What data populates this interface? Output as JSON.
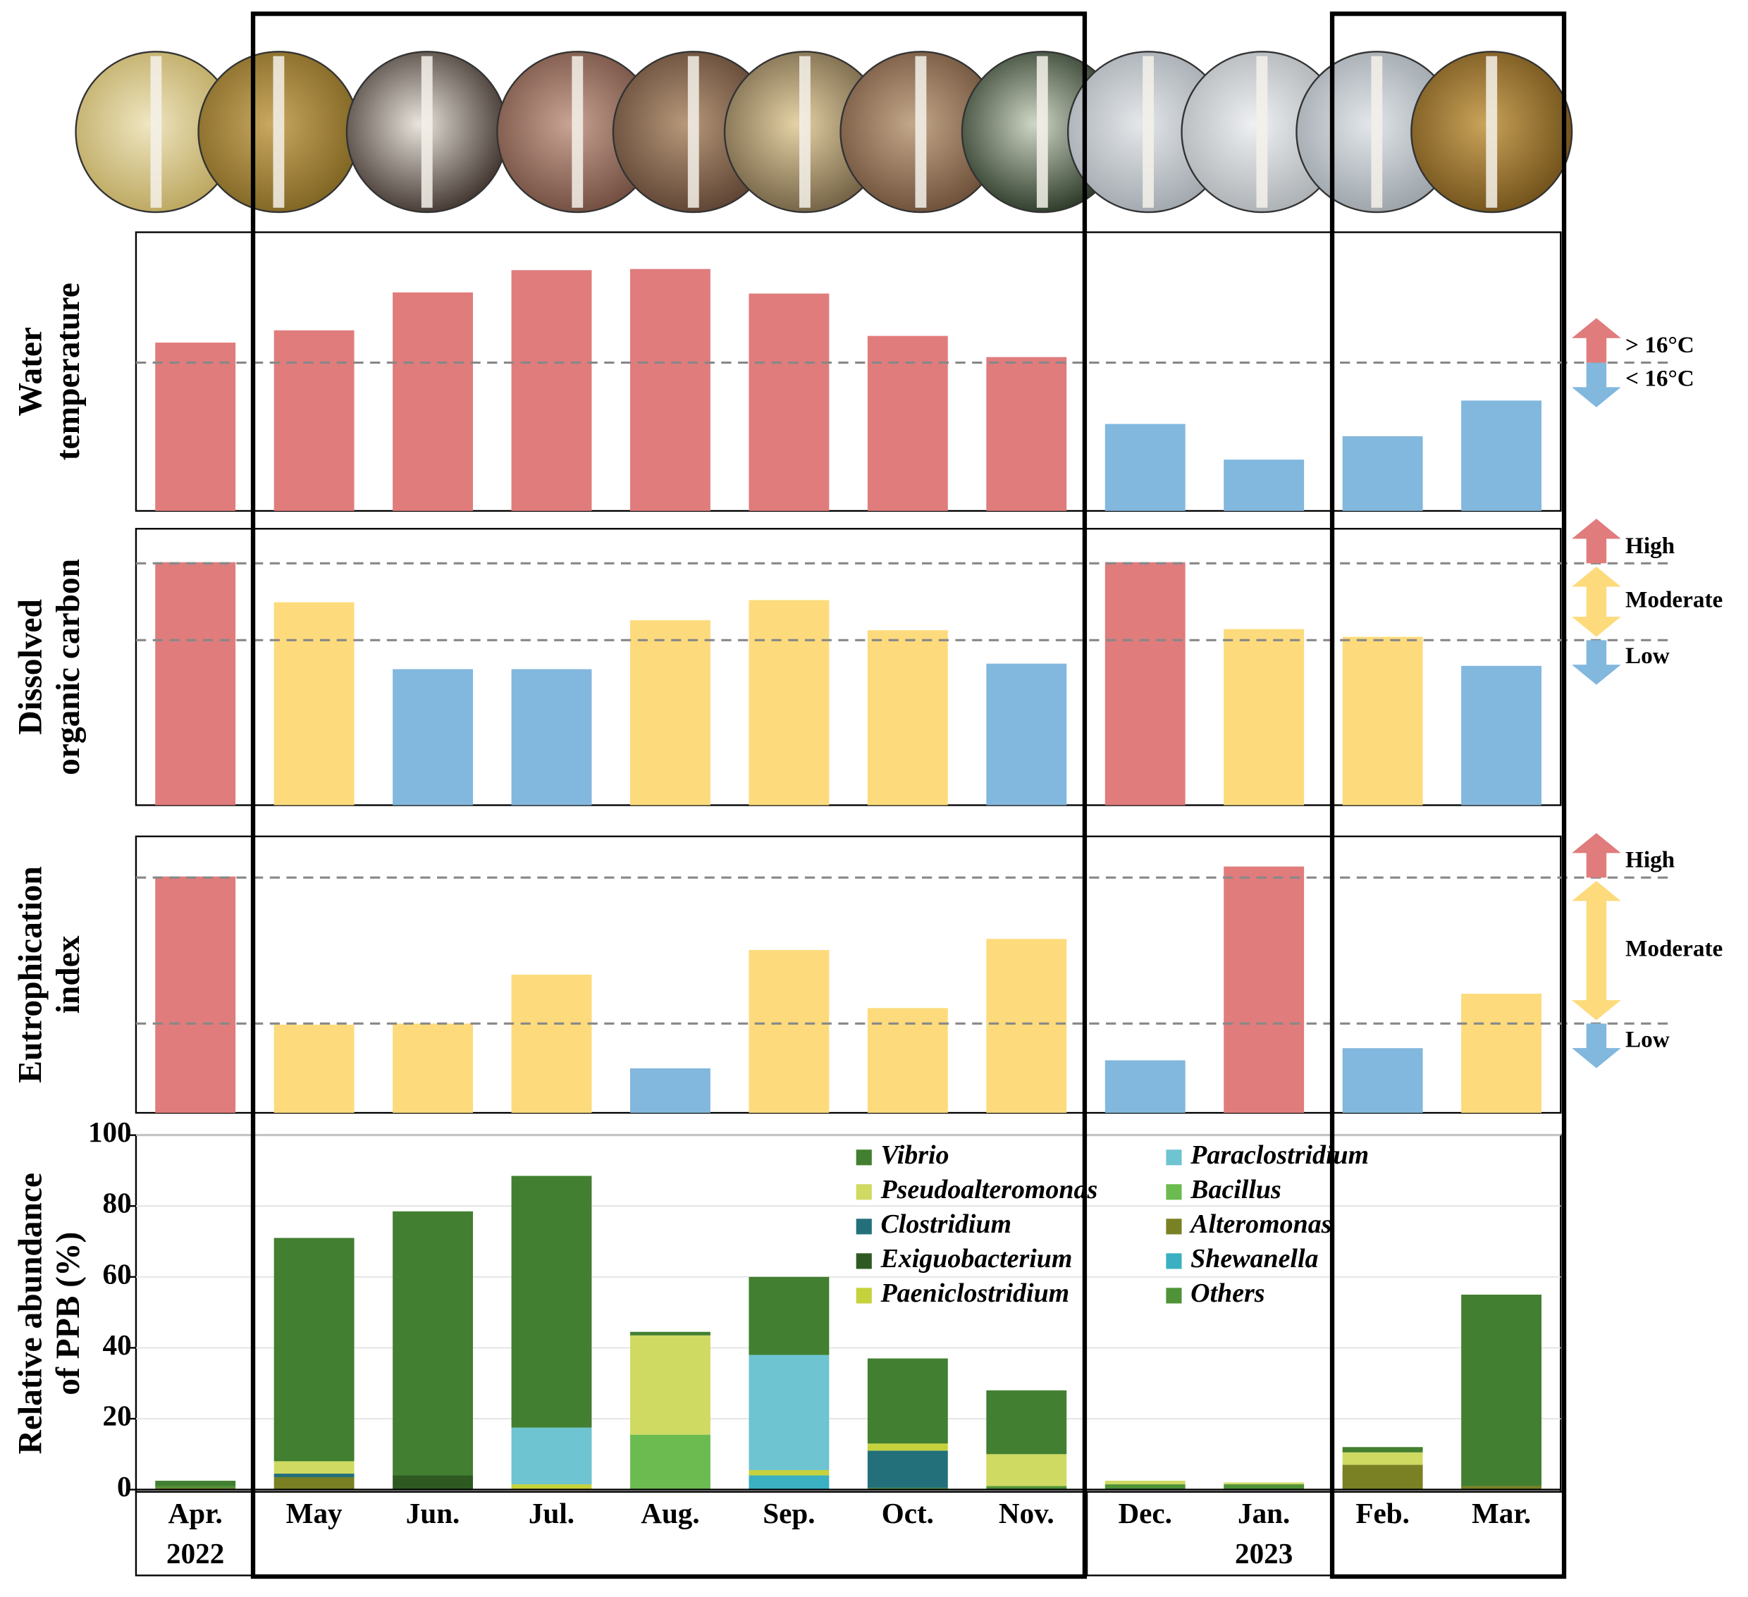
{
  "chart_data": [
    {
      "type": "bar",
      "y_label": [
        "Water",
        "temperature"
      ],
      "ylim": [
        0,
        100
      ],
      "values": [
        60.4,
        64.8,
        78.4,
        86.4,
        86.8,
        78,
        62.8,
        55.2,
        31.2,
        18.4,
        26.8,
        39.6
      ],
      "colors": [
        "#e07c7c",
        "#e07c7c",
        "#e07c7c",
        "#e07c7c",
        "#e07c7c",
        "#e07c7c",
        "#e07c7c",
        "#e07c7c",
        "#82b7de",
        "#82b7de",
        "#82b7de",
        "#82b7de"
      ],
      "reference_lines": [
        53.2
      ],
      "legend": [
        {
          "label": "> 16°C",
          "color": "#e07c7c"
        },
        {
          "label": "< 16°C",
          "color": "#82b7de"
        }
      ]
    },
    {
      "type": "bar",
      "y_label": [
        "Dissolved",
        "organic carbon"
      ],
      "ylim": [
        0,
        100
      ],
      "values": [
        87.9,
        73.4,
        49.2,
        49.2,
        66.9,
        74.2,
        63.3,
        51.2,
        87.9,
        63.7,
        60.9,
        50.4
      ],
      "colors": [
        "#e07c7c",
        "#fddb7c",
        "#82b7de",
        "#82b7de",
        "#fddb7c",
        "#fddb7c",
        "#fddb7c",
        "#82b7de",
        "#e07c7c",
        "#fddb7c",
        "#fddb7c",
        "#82b7de"
      ],
      "reference_lines": [
        87.5,
        59.7
      ],
      "legend": [
        {
          "label": "High",
          "color": "#e07c7c"
        },
        {
          "label": "Moderate",
          "color": "#fddb7c"
        },
        {
          "label": "Low",
          "color": "#82b7de"
        }
      ]
    },
    {
      "type": "bar",
      "y_label": [
        "Eutrophication",
        "index"
      ],
      "ylim": [
        0,
        100
      ],
      "values": [
        85.5,
        31.9,
        32.3,
        50,
        16.1,
        58.9,
        37.9,
        62.9,
        19,
        89.1,
        23.4,
        43.1
      ],
      "colors": [
        "#e07c7c",
        "#fddb7c",
        "#fddb7c",
        "#fddb7c",
        "#82b7de",
        "#fddb7c",
        "#fddb7c",
        "#fddb7c",
        "#82b7de",
        "#e07c7c",
        "#82b7de",
        "#fddb7c"
      ],
      "reference_lines": [
        85.1,
        32.3
      ],
      "legend": [
        {
          "label": "High",
          "color": "#e07c7c"
        },
        {
          "label": "Moderate",
          "color": "#fddb7c"
        },
        {
          "label": "Low",
          "color": "#82b7de"
        }
      ]
    },
    {
      "type": "stacked_bar",
      "y_label": [
        "Relative abundance",
        "of PPB (%)"
      ],
      "categories": [
        "Apr.",
        "May",
        "Jun.",
        "Jul.",
        "Aug.",
        "Sep.",
        "Oct.",
        "Nov.",
        "Dec.",
        "Jan.",
        "Feb.",
        "Mar."
      ],
      "category_sublabels": [
        "2022",
        null,
        null,
        null,
        null,
        null,
        null,
        null,
        null,
        "2023",
        null,
        null
      ],
      "ylim": [
        0,
        100
      ],
      "yticks": [
        0,
        20,
        40,
        60,
        80,
        100
      ],
      "grid": true,
      "series": [
        {
          "name": "Vibrio",
          "color": "#427f30",
          "values": [
            1.5,
            63,
            74.5,
            71,
            1,
            22,
            24,
            18,
            0,
            0,
            1.5,
            54
          ]
        },
        {
          "name": "Pseudoalteromonas",
          "color": "#cfda62",
          "values": [
            0,
            3.5,
            0,
            0,
            28,
            0,
            0,
            9,
            1,
            0.5,
            3.5,
            0
          ]
        },
        {
          "name": "Clostridium",
          "color": "#23707a",
          "values": [
            0,
            1,
            0,
            0,
            0,
            0,
            10.5,
            0,
            0,
            0,
            0,
            0
          ]
        },
        {
          "name": "Exiguobacterium",
          "color": "#2e5a22",
          "values": [
            0,
            0,
            4,
            0,
            0,
            0,
            0,
            0,
            0,
            0,
            0,
            0
          ]
        },
        {
          "name": "Paeniclostridium",
          "color": "#c6d23c",
          "values": [
            0,
            0,
            0,
            1.5,
            0,
            1.5,
            2,
            0,
            0,
            0,
            0,
            0
          ]
        },
        {
          "name": "Paraclostridium",
          "color": "#6ec4d0",
          "values": [
            0,
            0,
            0,
            16,
            0,
            32.5,
            0,
            0,
            0,
            0,
            0,
            0
          ]
        },
        {
          "name": "Bacillus",
          "color": "#6cbb50",
          "values": [
            0,
            0,
            0,
            0,
            15.5,
            0,
            0,
            0,
            0,
            0,
            0,
            0
          ]
        },
        {
          "name": "Alteromonas",
          "color": "#7a8024",
          "values": [
            0.5,
            3.5,
            0,
            0,
            0,
            0,
            0,
            0,
            0,
            0,
            7,
            1
          ]
        },
        {
          "name": "Shewanella",
          "color": "#3ab0c2",
          "values": [
            0,
            0,
            0,
            0,
            0,
            4,
            0,
            0,
            0,
            0,
            0,
            0
          ]
        },
        {
          "name": "Others",
          "color": "#4f9338",
          "values": [
            0.5,
            0,
            0,
            0,
            0,
            0,
            0.5,
            1,
            1.5,
            1.5,
            0,
            0
          ]
        }
      ]
    }
  ]
}
